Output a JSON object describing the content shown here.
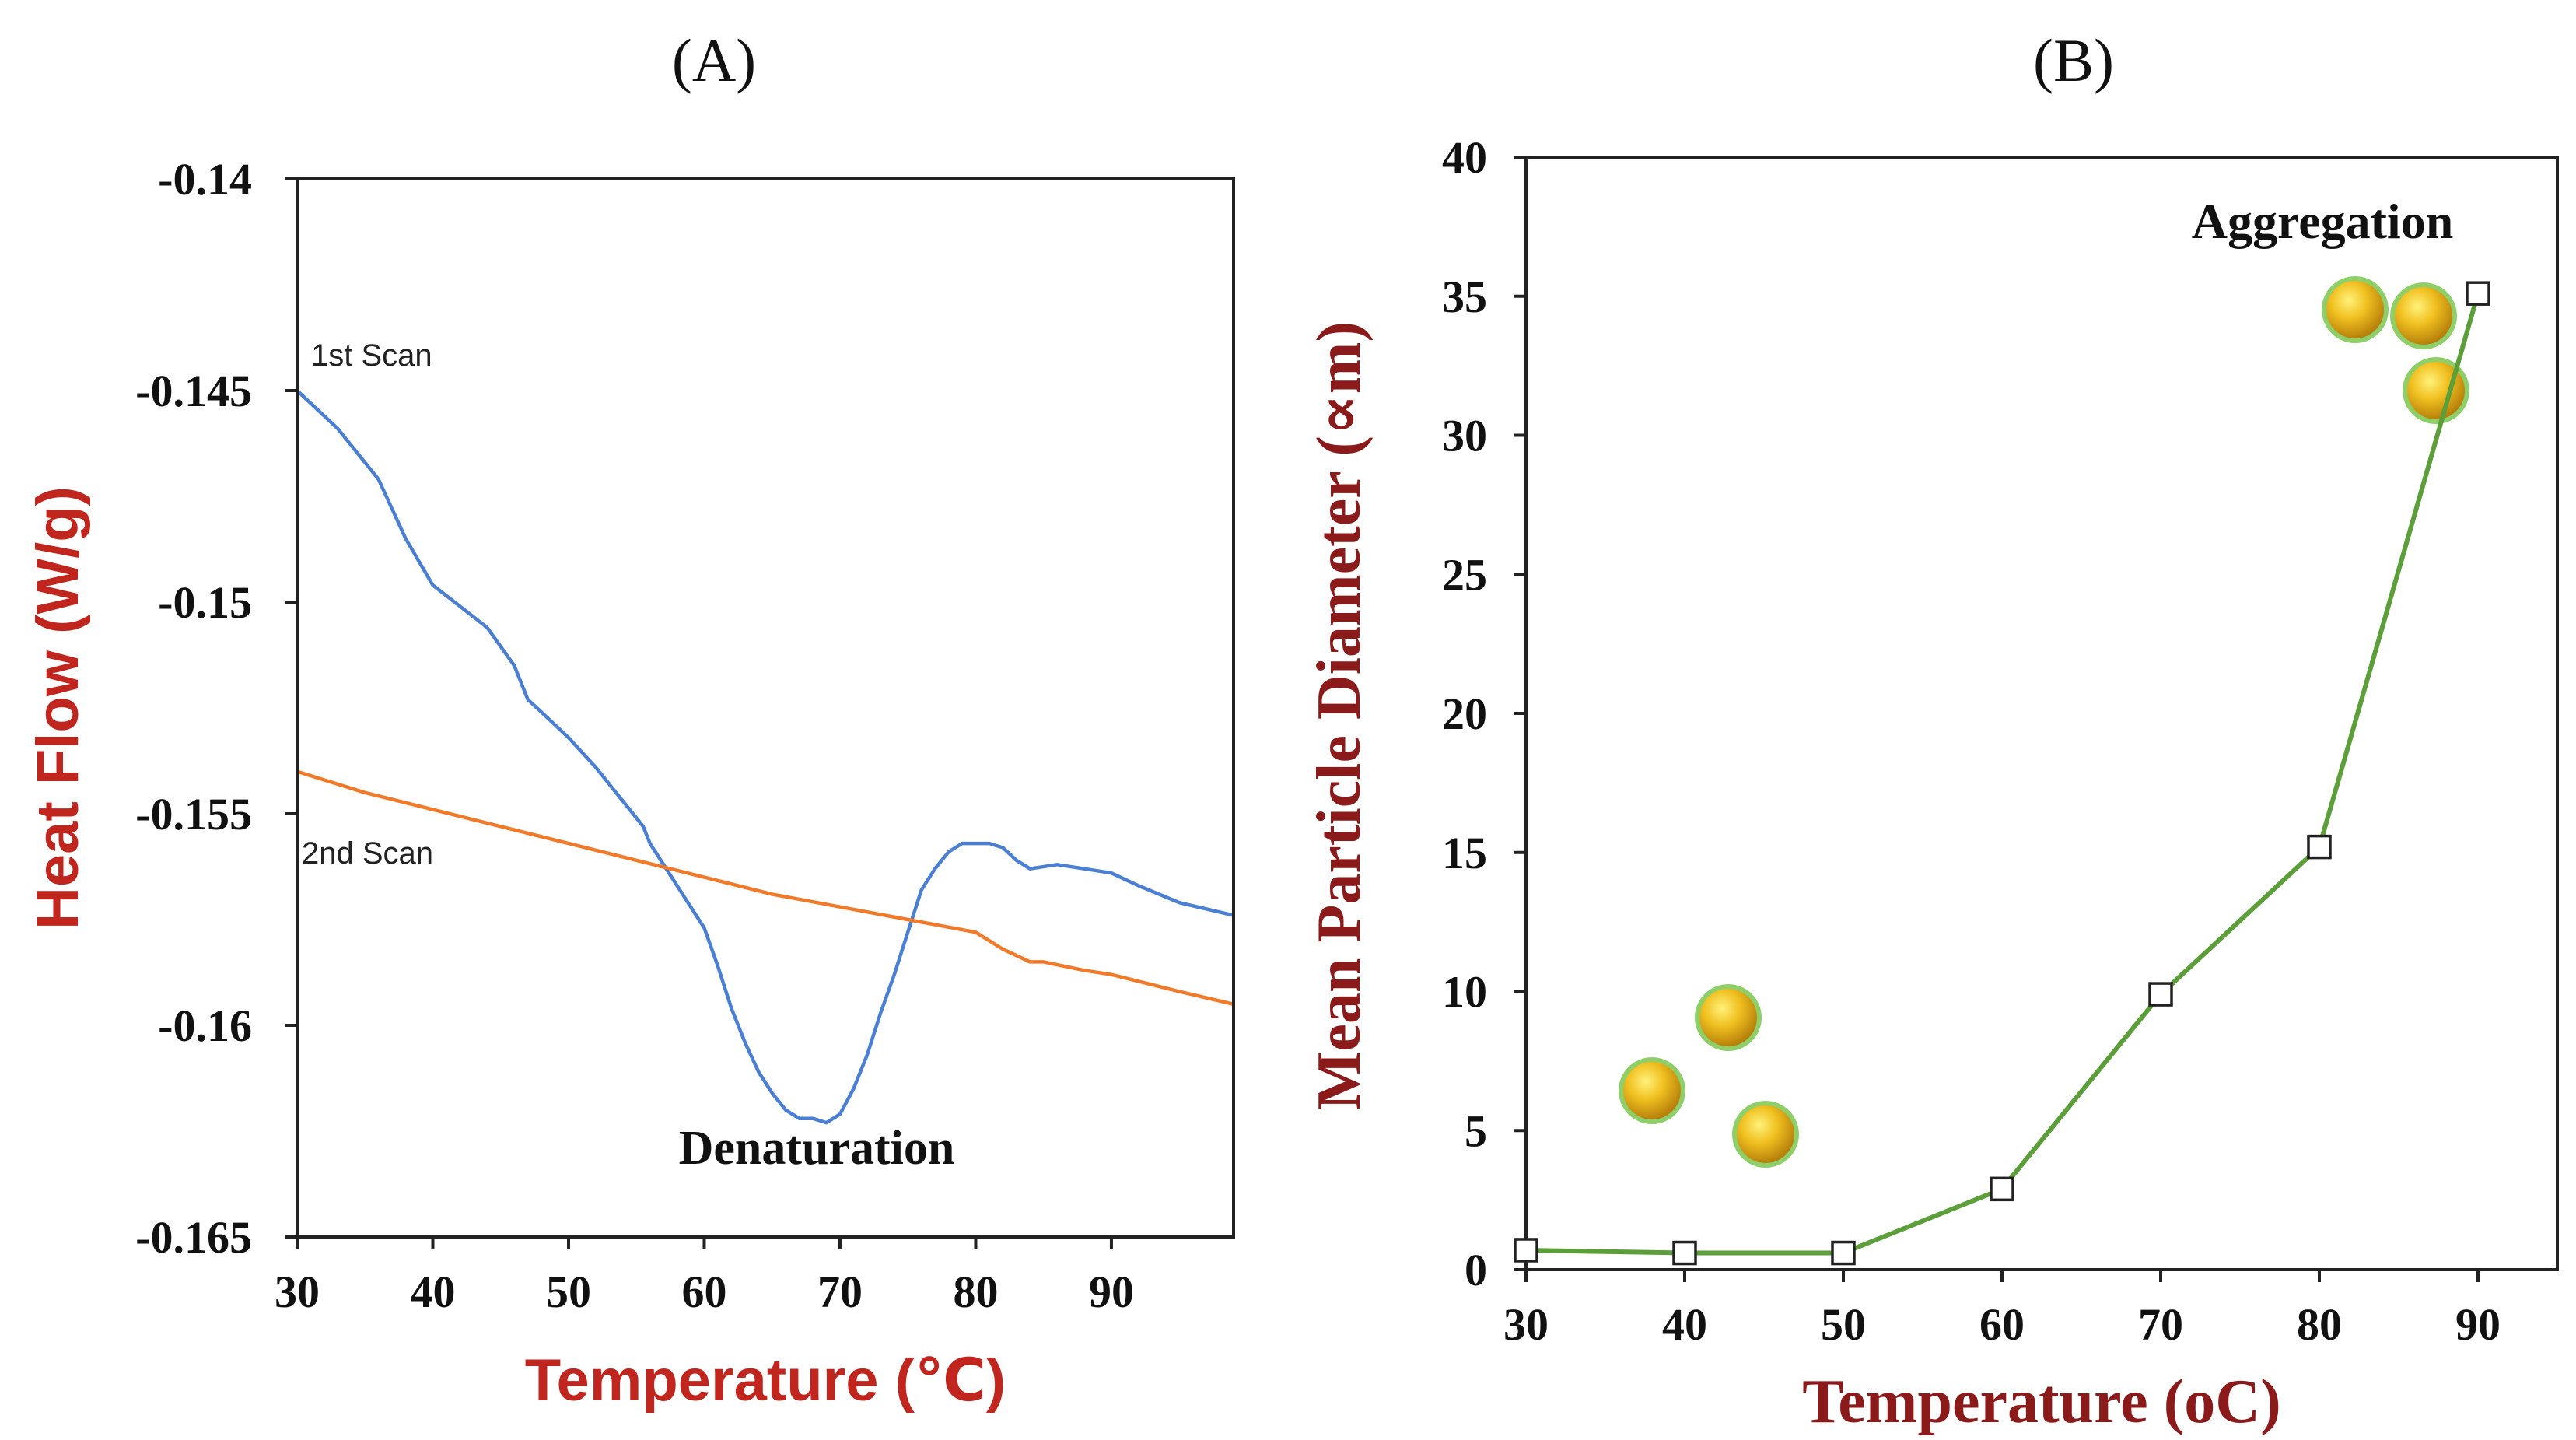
{
  "chart_data": [
    {
      "panel_label": "(A)",
      "type": "line",
      "title": "",
      "xlabel": "Temperature (℃)",
      "ylabel": "Heat Flow (W/g)",
      "xlim": [
        30,
        99
      ],
      "ylim": [
        -0.165,
        -0.14
      ],
      "x_ticks": [
        30,
        40,
        50,
        60,
        70,
        80,
        90
      ],
      "y_ticks": [
        -0.165,
        -0.16,
        -0.155,
        -0.15,
        -0.145,
        -0.14
      ],
      "y_tick_labels": [
        "-0.165",
        "-0.16",
        "-0.155",
        "-0.15",
        "-0.145",
        "-0.14"
      ],
      "annotation": "Denaturation",
      "colors": {
        "axis_label": "#c0261e",
        "scan1": "#4a7fd4",
        "scan2": "#f07a2a"
      },
      "series": [
        {
          "name": "1st Scan",
          "x": [
            30,
            33,
            36,
            38,
            40,
            42,
            44,
            46,
            47,
            48,
            50,
            52,
            54,
            55.5,
            56,
            58,
            60,
            61,
            62,
            63,
            64,
            65,
            66,
            67,
            68,
            69,
            70,
            71,
            72,
            73,
            74,
            75,
            76,
            77,
            78,
            79,
            80,
            81,
            82,
            83,
            84,
            86,
            88,
            90,
            92,
            95,
            99
          ],
          "y": [
            -0.145,
            -0.1459,
            -0.1471,
            -0.1485,
            -0.1496,
            -0.1501,
            -0.1506,
            -0.1515,
            -0.1523,
            -0.1526,
            -0.1532,
            -0.1539,
            -0.1547,
            -0.1553,
            -0.1557,
            -0.1567,
            -0.1577,
            -0.1586,
            -0.1596,
            -0.1604,
            -0.1611,
            -0.1616,
            -0.162,
            -0.1622,
            -0.1622,
            -0.1623,
            -0.1621,
            -0.1615,
            -0.1607,
            -0.1597,
            -0.1588,
            -0.1578,
            -0.1568,
            -0.1563,
            -0.1559,
            -0.1557,
            -0.1557,
            -0.1557,
            -0.1558,
            -0.1561,
            -0.1563,
            -0.1562,
            -0.1563,
            -0.1564,
            -0.1567,
            -0.1571,
            -0.1574
          ]
        },
        {
          "name": "2nd Scan",
          "x": [
            30,
            35,
            40,
            45,
            50,
            55,
            60,
            65,
            70,
            75,
            80,
            82,
            84,
            85,
            88,
            90,
            95,
            99
          ],
          "y": [
            -0.154,
            -0.1545,
            -0.1549,
            -0.1553,
            -0.1557,
            -0.1561,
            -0.1565,
            -0.1569,
            -0.1572,
            -0.1575,
            -0.1578,
            -0.1582,
            -0.1585,
            -0.1585,
            -0.1587,
            -0.1588,
            -0.1592,
            -0.1595
          ]
        }
      ]
    },
    {
      "panel_label": "(B)",
      "type": "line",
      "title": "",
      "xlabel": "Temperature (oC)",
      "ylabel": "Mean Particle Diameter  (∝m)",
      "xlim": [
        30,
        95
      ],
      "ylim": [
        0,
        40
      ],
      "x_ticks": [
        30,
        40,
        50,
        60,
        70,
        80,
        90
      ],
      "y_ticks": [
        0,
        5,
        10,
        15,
        20,
        25,
        30,
        35,
        40
      ],
      "annotation": "Aggregation",
      "colors": {
        "axis_label": "#8b1a1a",
        "line": "#5c9e3a",
        "marker_fill": "#ffffff",
        "marker_edge": "#222222"
      },
      "series": [
        {
          "name": "Mean Particle Diameter",
          "x": [
            30,
            40,
            50,
            60,
            70,
            80,
            90
          ],
          "y": [
            0.7,
            0.6,
            0.6,
            2.9,
            9.9,
            15.2,
            35.1
          ]
        }
      ]
    }
  ]
}
